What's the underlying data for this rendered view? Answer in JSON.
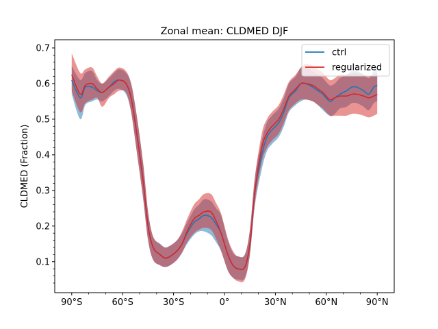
{
  "chart_data": {
    "type": "line",
    "title": "Zonal mean: CLDMED DJF",
    "xlabel": "",
    "ylabel": "CLDMED (Fraction)",
    "xlim": [
      -100,
      100
    ],
    "ylim": [
      0.013,
      0.723
    ],
    "x_ticks": [
      -90,
      -60,
      -30,
      0,
      30,
      60,
      90
    ],
    "x_tick_labels": [
      "90°S",
      "60°S",
      "30°S",
      "0°",
      "30°N",
      "60°N",
      "90°N"
    ],
    "y_ticks": [
      0.1,
      0.2,
      0.3,
      0.4,
      0.5,
      0.6,
      0.7
    ],
    "y_tick_labels": [
      "0.1",
      "0.2",
      "0.3",
      "0.4",
      "0.5",
      "0.6",
      "0.7"
    ],
    "legend": {
      "position": "top-right",
      "entries": [
        "ctrl",
        "regularized"
      ]
    },
    "x": [
      -90,
      -85,
      -82,
      -78,
      -75,
      -72,
      -68,
      -65,
      -62,
      -58,
      -55,
      -52,
      -48,
      -45,
      -42,
      -38,
      -35,
      -32,
      -28,
      -25,
      -22,
      -18,
      -15,
      -12,
      -8,
      -5,
      -2,
      2,
      5,
      8,
      12,
      15,
      18,
      22,
      25,
      28,
      32,
      35,
      38,
      42,
      45,
      48,
      52,
      55,
      58,
      62,
      65,
      68,
      72,
      75,
      78,
      82,
      85,
      88,
      90
    ],
    "series": [
      {
        "name": "ctrl",
        "color": "#1f77b4",
        "values": [
          0.61,
          0.56,
          0.59,
          0.59,
          0.58,
          0.575,
          0.59,
          0.605,
          0.61,
          0.6,
          0.56,
          0.47,
          0.33,
          0.2,
          0.14,
          0.12,
          0.11,
          0.115,
          0.13,
          0.15,
          0.18,
          0.21,
          0.22,
          0.23,
          0.225,
          0.205,
          0.18,
          0.12,
          0.09,
          0.08,
          0.085,
          0.15,
          0.3,
          0.4,
          0.45,
          0.47,
          0.49,
          0.52,
          0.56,
          0.58,
          0.6,
          0.6,
          0.59,
          0.58,
          0.57,
          0.55,
          0.56,
          0.57,
          0.58,
          0.59,
          0.59,
          0.58,
          0.57,
          0.59,
          0.595
        ],
        "band_lower": [
          0.57,
          0.5,
          0.54,
          0.55,
          0.555,
          0.55,
          0.565,
          0.58,
          0.585,
          0.57,
          0.52,
          0.42,
          0.28,
          0.16,
          0.105,
          0.09,
          0.085,
          0.09,
          0.105,
          0.125,
          0.15,
          0.175,
          0.185,
          0.185,
          0.175,
          0.155,
          0.13,
          0.075,
          0.055,
          0.05,
          0.055,
          0.12,
          0.26,
          0.36,
          0.41,
          0.43,
          0.45,
          0.48,
          0.52,
          0.54,
          0.55,
          0.555,
          0.55,
          0.54,
          0.525,
          0.51,
          0.515,
          0.53,
          0.535,
          0.545,
          0.545,
          0.535,
          0.525,
          0.545,
          0.55
        ],
        "band_upper": [
          0.65,
          0.61,
          0.63,
          0.635,
          0.61,
          0.6,
          0.615,
          0.63,
          0.64,
          0.63,
          0.6,
          0.52,
          0.38,
          0.24,
          0.17,
          0.15,
          0.14,
          0.145,
          0.16,
          0.18,
          0.21,
          0.245,
          0.26,
          0.275,
          0.27,
          0.25,
          0.23,
          0.16,
          0.125,
          0.115,
          0.12,
          0.19,
          0.34,
          0.44,
          0.49,
          0.51,
          0.53,
          0.56,
          0.6,
          0.62,
          0.645,
          0.645,
          0.635,
          0.625,
          0.615,
          0.595,
          0.6,
          0.615,
          0.625,
          0.635,
          0.635,
          0.625,
          0.615,
          0.635,
          0.64
        ]
      },
      {
        "name": "regularized",
        "color": "#d62728",
        "values": [
          0.625,
          0.57,
          0.595,
          0.6,
          0.585,
          0.575,
          0.59,
          0.6,
          0.61,
          0.6,
          0.56,
          0.47,
          0.33,
          0.2,
          0.14,
          0.12,
          0.11,
          0.115,
          0.13,
          0.15,
          0.185,
          0.22,
          0.23,
          0.24,
          0.24,
          0.215,
          0.18,
          0.12,
          0.09,
          0.08,
          0.085,
          0.15,
          0.3,
          0.42,
          0.46,
          0.48,
          0.5,
          0.53,
          0.565,
          0.585,
          0.6,
          0.6,
          0.595,
          0.585,
          0.575,
          0.555,
          0.56,
          0.565,
          0.565,
          0.57,
          0.57,
          0.565,
          0.56,
          0.565,
          0.57
        ],
        "band_lower": [
          0.58,
          0.52,
          0.545,
          0.555,
          0.56,
          0.535,
          0.56,
          0.57,
          0.58,
          0.575,
          0.52,
          0.42,
          0.28,
          0.16,
          0.105,
          0.09,
          0.085,
          0.09,
          0.105,
          0.125,
          0.155,
          0.18,
          0.19,
          0.195,
          0.19,
          0.165,
          0.13,
          0.075,
          0.055,
          0.045,
          0.05,
          0.12,
          0.27,
          0.38,
          0.42,
          0.44,
          0.46,
          0.49,
          0.525,
          0.545,
          0.555,
          0.555,
          0.55,
          0.54,
          0.53,
          0.51,
          0.51,
          0.51,
          0.51,
          0.515,
          0.515,
          0.51,
          0.505,
          0.51,
          0.515
        ],
        "band_upper": [
          0.685,
          0.63,
          0.64,
          0.645,
          0.62,
          0.6,
          0.62,
          0.635,
          0.645,
          0.635,
          0.6,
          0.52,
          0.38,
          0.24,
          0.17,
          0.15,
          0.14,
          0.145,
          0.16,
          0.185,
          0.22,
          0.26,
          0.275,
          0.29,
          0.29,
          0.265,
          0.235,
          0.165,
          0.13,
          0.115,
          0.12,
          0.19,
          0.34,
          0.46,
          0.5,
          0.52,
          0.54,
          0.57,
          0.605,
          0.625,
          0.645,
          0.655,
          0.65,
          0.64,
          0.63,
          0.61,
          0.615,
          0.625,
          0.625,
          0.63,
          0.63,
          0.625,
          0.62,
          0.625,
          0.63
        ]
      }
    ]
  }
}
